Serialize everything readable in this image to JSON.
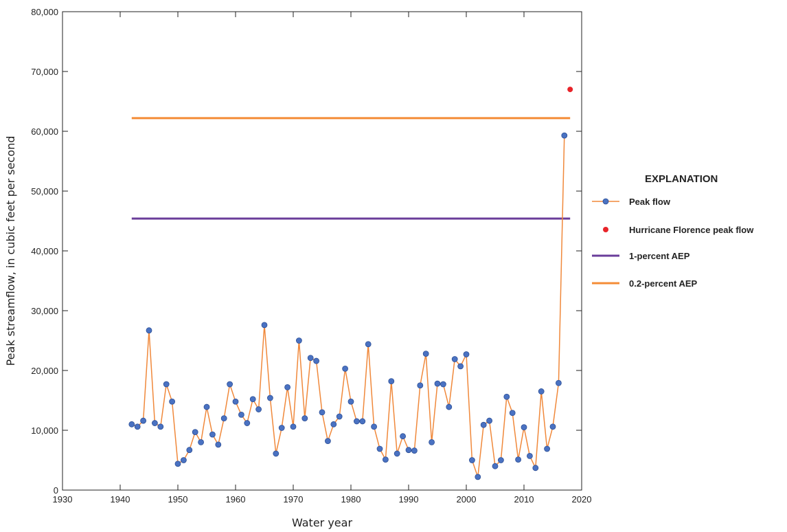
{
  "chart_data": {
    "type": "line",
    "xlabel": "Water year",
    "ylabel": "Peak streamflow, in cubic feet per second",
    "xlim": [
      1930,
      2020
    ],
    "ylim": [
      0,
      80000
    ],
    "x_ticks": [
      1930,
      1940,
      1950,
      1960,
      1970,
      1980,
      1990,
      2000,
      2010,
      2020
    ],
    "y_ticks": [
      0,
      10000,
      20000,
      30000,
      40000,
      50000,
      60000,
      70000,
      80000
    ],
    "x_tick_labels": [
      "1930",
      "1940",
      "1950",
      "1960",
      "1970",
      "1980",
      "1990",
      "2000",
      "2010",
      "2020"
    ],
    "y_tick_labels": [
      "0",
      "10,000",
      "20,000",
      "30,000",
      "40,000",
      "50,000",
      "60,000",
      "70,000",
      "80,000"
    ],
    "grid": false,
    "legend_position": "right",
    "legend_title": "EXPLANATION",
    "colors": {
      "peak_line": "#f0883a",
      "peak_marker": "#4a72c2",
      "peak_marker_edge": "#2d4f95",
      "florence": "#e8242a",
      "aep1": "#6a3d9a",
      "aep02": "#f48c36"
    },
    "series": [
      {
        "name": "Peak flow",
        "x": [
          1942,
          1943,
          1944,
          1945,
          1946,
          1947,
          1948,
          1949,
          1950,
          1951,
          1952,
          1953,
          1954,
          1955,
          1956,
          1957,
          1958,
          1959,
          1960,
          1961,
          1962,
          1963,
          1964,
          1965,
          1966,
          1967,
          1968,
          1969,
          1970,
          1971,
          1972,
          1973,
          1974,
          1975,
          1976,
          1977,
          1978,
          1979,
          1980,
          1981,
          1982,
          1983,
          1984,
          1985,
          1986,
          1987,
          1988,
          1989,
          1990,
          1991,
          1992,
          1993,
          1994,
          1995,
          1996,
          1997,
          1998,
          1999,
          2000,
          2001,
          2002,
          2003,
          2004,
          2005,
          2006,
          2007,
          2008,
          2009,
          2010,
          2011,
          2012,
          2013,
          2014,
          2015,
          2016,
          2017
        ],
        "y": [
          11000,
          10600,
          11600,
          26700,
          11200,
          10600,
          17700,
          14800,
          4400,
          5000,
          6700,
          9700,
          8000,
          13900,
          9300,
          7600,
          12000,
          17700,
          14800,
          12600,
          11200,
          15200,
          13500,
          27600,
          15400,
          6100,
          10400,
          17200,
          10600,
          25000,
          12000,
          22100,
          21600,
          13000,
          8200,
          11000,
          12300,
          20300,
          14800,
          11500,
          11500,
          24400,
          10600,
          6900,
          5100,
          18200,
          6100,
          9000,
          6700,
          6600,
          17500,
          22800,
          8000,
          17800,
          17700,
          13900,
          21900,
          20700,
          22700,
          5000,
          2200,
          10900,
          11600,
          4000,
          5000,
          15600,
          12900,
          5100,
          10500,
          5700,
          3700,
          16500,
          6900,
          10600,
          17900,
          59300
        ]
      },
      {
        "name": "Hurricane Florence peak flow",
        "x": [
          2018
        ],
        "y": [
          67000
        ]
      },
      {
        "name": "1-percent AEP",
        "x": [
          1942,
          2018
        ],
        "y": [
          45400,
          45400
        ]
      },
      {
        "name": "0.2-percent AEP",
        "x": [
          1942,
          2018
        ],
        "y": [
          62200,
          62200
        ]
      }
    ]
  }
}
